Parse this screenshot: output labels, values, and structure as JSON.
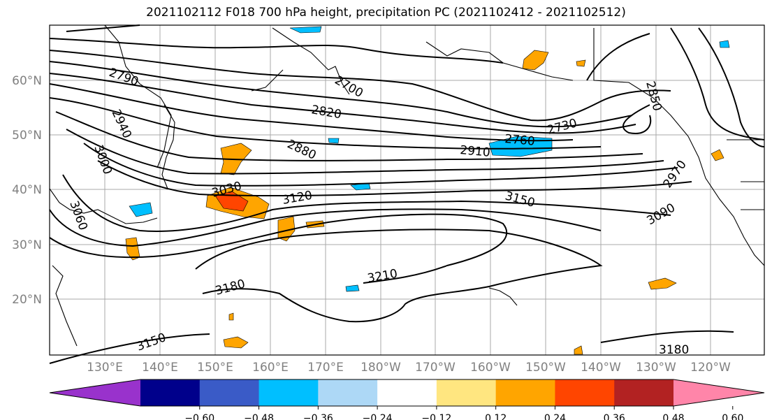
{
  "title": "2021102112 F018 700 hPa height, precipitation PC (2021102412 - 2021102512)",
  "lat_labels": [
    "60°N",
    "50°N",
    "40°N",
    "30°N",
    "20°N"
  ],
  "lon_labels": [
    "130°E",
    "140°E",
    "150°E",
    "160°E",
    "170°E",
    "180°W",
    "170°W",
    "160°W",
    "150°W",
    "140°W",
    "130°W",
    "120°W"
  ],
  "contour_labels": [
    "2790",
    "2700",
    "2820",
    "2850",
    "2940",
    "3000",
    "2880",
    "2760",
    "2730",
    "2910",
    "3030",
    "3060",
    "3120",
    "3150",
    "2970",
    "3090",
    "3180",
    "3210",
    "3180",
    "3150",
    "3180"
  ],
  "colorbar": {
    "ticks": [
      "−0.60",
      "−0.48",
      "−0.36",
      "−0.24",
      "−0.12",
      "0.12",
      "0.24",
      "0.36",
      "0.48",
      "0.60"
    ],
    "colors": [
      "#9932CC",
      "#00008B",
      "#3A5BC7",
      "#00BFFF",
      "#ADD8F6",
      "#FFFFFF",
      "#FFE680",
      "#FFA500",
      "#FF4500",
      "#B22222",
      "#FF85A9"
    ]
  },
  "shading_colors": {
    "light_blue": "#00BFFF",
    "orange": "#FFA500",
    "red": "#FF4500",
    "yellow": "#FFE680"
  }
}
